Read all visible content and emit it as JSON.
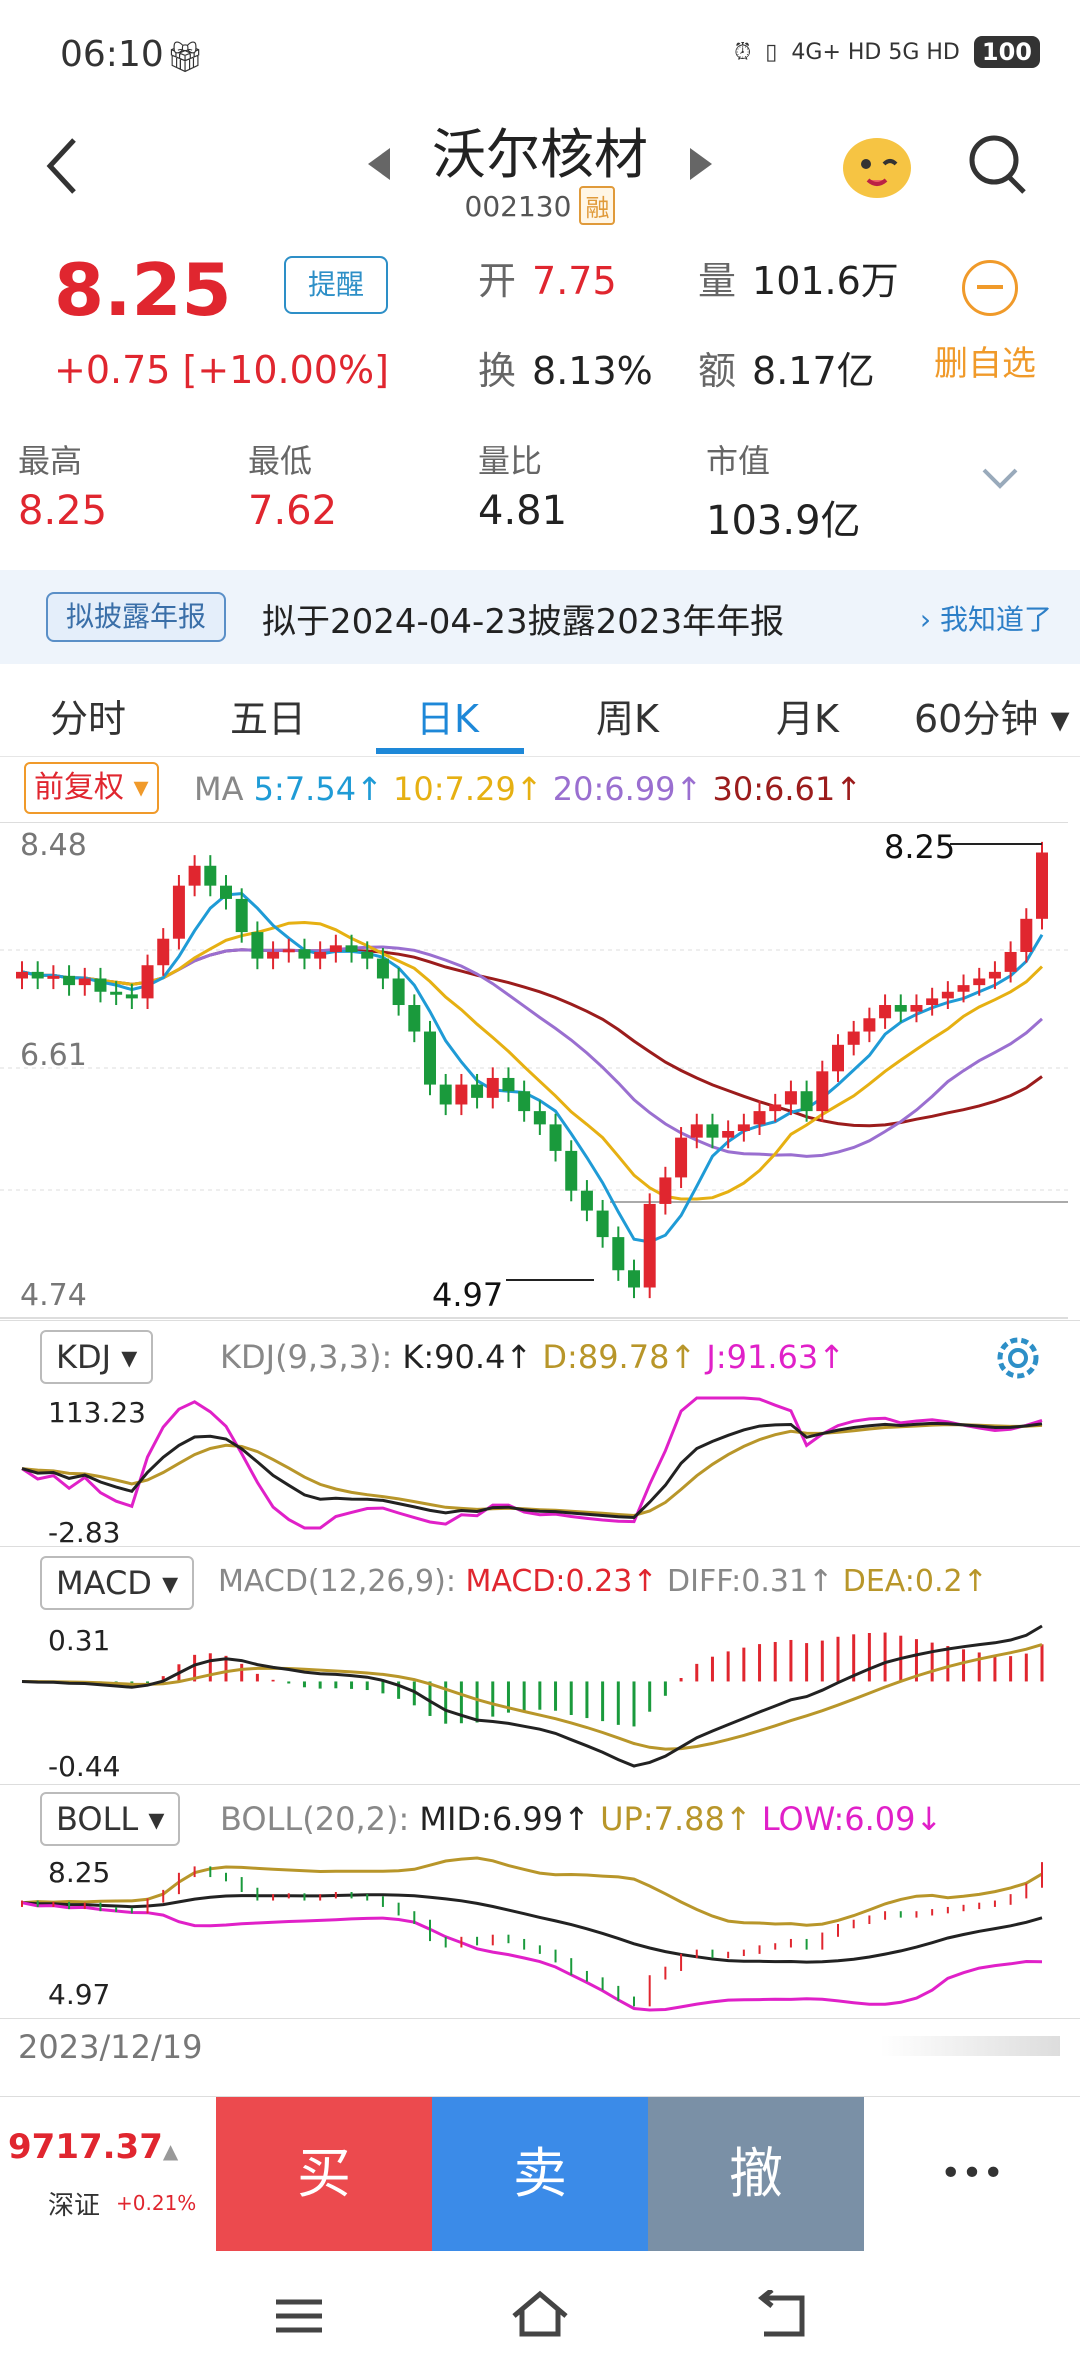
{
  "status": {
    "time": "06:10",
    "network": "4G+ HD  5G HD",
    "battery": "100"
  },
  "header": {
    "title": "沃尔核材",
    "code": "002130",
    "tag": "融"
  },
  "quote": {
    "price": "8.25",
    "change": "+0.75  [+10.00%]",
    "remind_label": "提醒",
    "open_label": "开",
    "open": "7.75",
    "volume_label": "量",
    "volume": "101.6万",
    "turnover_label": "换",
    "turnover": "8.13%",
    "amount_label": "额",
    "amount": "8.17亿",
    "remove_label": "删自选"
  },
  "stats": [
    {
      "label": "最高",
      "value": "8.25",
      "color": "#e0262f"
    },
    {
      "label": "最低",
      "value": "7.62",
      "color": "#e0262f"
    },
    {
      "label": "量比",
      "value": "4.81",
      "color": "#222222"
    },
    {
      "label": "市值",
      "value": "103.9亿",
      "color": "#222222"
    }
  ],
  "notice": {
    "tag": "拟披露年报",
    "text": "拟于2024-04-23披露2023年年报",
    "button": "我知道了"
  },
  "tabs": [
    "分时",
    "五日",
    "日K",
    "周K",
    "月K",
    "60分钟"
  ],
  "active_tab": 2,
  "kline": {
    "adjust_label": "前复权",
    "ma_label": "MA",
    "ma5": "5:7.54↑",
    "ma10": "10:7.29↑",
    "ma20": "20:6.99↑",
    "ma30": "30:6.61↑",
    "y_top": "8.48",
    "y_mid": "6.61",
    "y_bottom": "4.74",
    "high_mark": "8.25",
    "low_mark": "4.97",
    "colors": {
      "ma5": "#1f9bd6",
      "ma10": "#e6b012",
      "ma20": "#9a6fd0",
      "ma30": "#9b1c1c",
      "up": "#e0262f",
      "down": "#1a9a3c"
    }
  },
  "kdj": {
    "tag": "KDJ",
    "params": "KDJ(9,3,3):",
    "k": "K:90.4↑",
    "d": "D:89.78↑",
    "j": "J:91.63↑",
    "y_top": "113.23",
    "y_bottom": "-2.83"
  },
  "macd": {
    "tag": "MACD",
    "params": "MACD(12,26,9):",
    "macd": "MACD:0.23↑",
    "diff": "DIFF:0.31↑",
    "dea": "DEA:0.2↑",
    "y_top": "0.31",
    "y_bottom": "-0.44"
  },
  "boll": {
    "tag": "BOLL",
    "params": "BOLL(20,2):",
    "mid": "MID:6.99↑",
    "up": "UP:7.88↑",
    "low": "LOW:6.09↓",
    "y_top": "8.25",
    "y_bottom": "4.97"
  },
  "date_label": "2023/12/19",
  "bottom": {
    "index_value": "9717.37",
    "index_arrow": "▲",
    "index_name": "深证",
    "index_change": "+0.21%",
    "buy": "买",
    "sell": "卖",
    "cancel": "撤",
    "more": "•••"
  },
  "chart_data": {
    "type": "candlestick",
    "y_range": [
      4.74,
      8.48
    ],
    "annotated_high": 8.25,
    "annotated_low": 4.97,
    "close_approx": [
      7.35,
      7.3,
      7.32,
      7.25,
      7.3,
      7.2,
      7.18,
      7.15,
      7.4,
      7.6,
      8.0,
      8.15,
      8.0,
      7.9,
      7.65,
      7.45,
      7.5,
      7.52,
      7.45,
      7.5,
      7.55,
      7.5,
      7.45,
      7.3,
      7.1,
      6.9,
      6.5,
      6.35,
      6.5,
      6.4,
      6.55,
      6.45,
      6.3,
      6.2,
      6.0,
      5.7,
      5.55,
      5.35,
      5.1,
      4.97,
      5.6,
      5.8,
      6.1,
      6.2,
      6.1,
      6.15,
      6.2,
      6.3,
      6.35,
      6.45,
      6.3,
      6.6,
      6.8,
      6.9,
      7.0,
      7.1,
      7.05,
      7.1,
      7.15,
      7.2,
      7.25,
      7.3,
      7.35,
      7.5,
      7.75,
      8.25
    ]
  }
}
